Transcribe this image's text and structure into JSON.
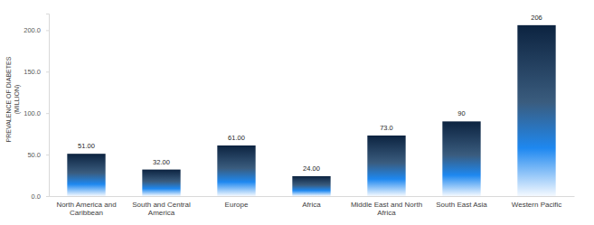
{
  "chart_data": {
    "type": "bar",
    "y_label": "PREVALENCE OF DIABETES (MILLION)",
    "categories": [
      "North America and Caribbean",
      "South and Central America",
      "Europe",
      "Africa",
      "Middle East and North Africa",
      "South East Asia",
      "Western Pacific"
    ],
    "values": [
      51,
      32,
      61,
      24,
      73,
      90,
      206
    ],
    "value_labels": [
      "51.00",
      "32.00",
      "61.00",
      "24.00",
      "73.0",
      "90",
      "206"
    ],
    "data_labels": true,
    "color": "#0c2340",
    "ylim": [
      0,
      220
    ],
    "yticks": [
      {
        "value": 0,
        "label": "0.0"
      },
      {
        "value": 50,
        "label": "50.0"
      },
      {
        "value": 100,
        "label": "100.0"
      },
      {
        "value": 150,
        "label": "150.0"
      },
      {
        "value": 200,
        "label": "200.0"
      }
    ],
    "grid": false
  }
}
